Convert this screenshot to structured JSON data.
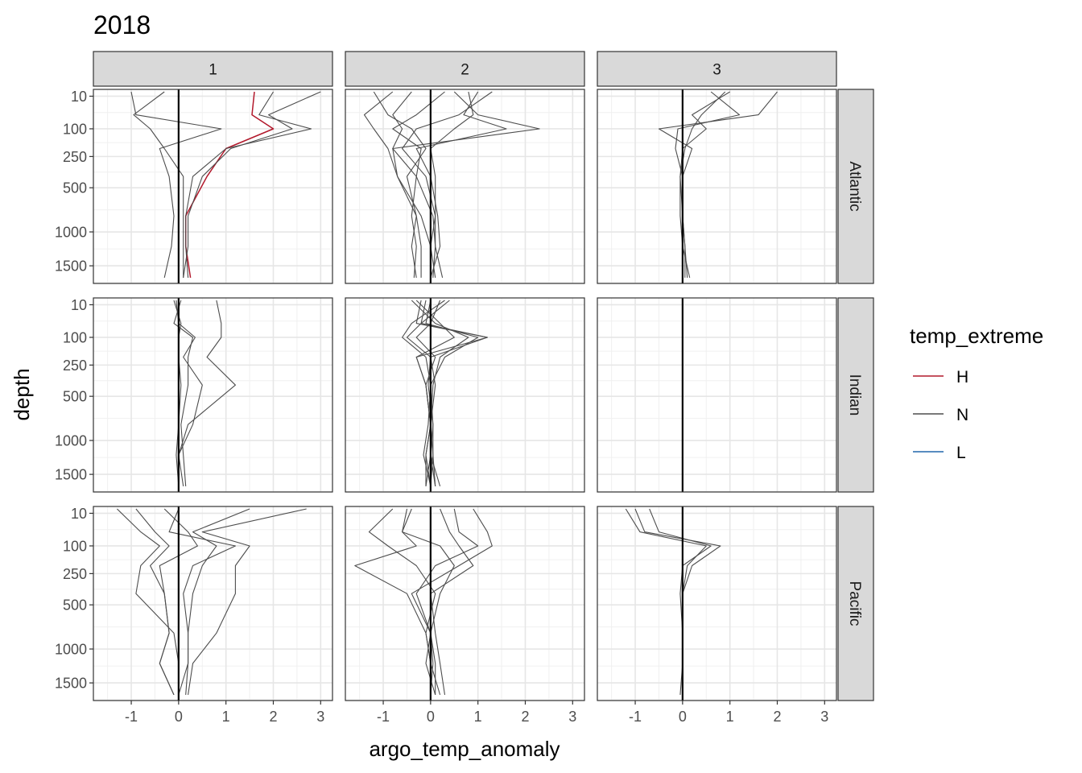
{
  "chart_data": {
    "type": "line",
    "title": "2018",
    "xlabel": "argo_temp_anomaly",
    "ylabel": "depth",
    "xlim": [
      -1.8,
      3.25
    ],
    "x_ticks": [
      -1,
      0,
      1,
      2,
      3
    ],
    "x_tick_labels": [
      "-1",
      "0",
      "1",
      "2",
      "3"
    ],
    "y_scale": "sqrt_reversed",
    "ylim": [
      0,
      1800
    ],
    "y_ticks": [
      10,
      100,
      250,
      500,
      1000,
      1500
    ],
    "y_tick_labels": [
      "10",
      "100",
      "250",
      "500",
      "1000",
      "1500"
    ],
    "grid": true,
    "reference_line_x": 0,
    "col_facets": [
      "1",
      "2",
      "3"
    ],
    "row_facets": [
      "Atlantic",
      "Indian",
      "Pacific"
    ],
    "legend": {
      "title": "temp_extreme",
      "placement": "right",
      "entries": [
        {
          "label": "H",
          "color": "#B2182B"
        },
        {
          "label": "N",
          "color": "#4D4D4D"
        },
        {
          "label": "L",
          "color": "#2166AC"
        }
      ]
    },
    "depths": [
      5,
      50,
      100,
      200,
      400,
      800,
      1200,
      1700
    ],
    "panels": [
      {
        "row": "Atlantic",
        "col": "1",
        "series": [
          {
            "temp_extreme": "H",
            "x": [
              1.6,
              1.55,
              2.0,
              1.0,
              0.6,
              0.15,
              0.15,
              0.25
            ]
          },
          {
            "temp_extreme": "N",
            "x": [
              -1.0,
              -0.9,
              0.9,
              -0.4,
              -0.2,
              -0.1,
              -0.15,
              -0.3
            ]
          },
          {
            "temp_extreme": "N",
            "x": [
              3.0,
              1.9,
              2.4,
              1.1,
              0.5,
              0.2,
              0.2,
              0.1
            ]
          },
          {
            "temp_extreme": "N",
            "x": [
              2.0,
              1.7,
              2.8,
              1.0,
              0.3,
              0.15,
              0.15,
              0.2
            ]
          },
          {
            "temp_extreme": "N",
            "x": [
              -0.3,
              -0.95,
              -0.6,
              -0.3,
              0.1,
              0.1,
              0.1,
              0.1
            ]
          }
        ]
      },
      {
        "row": "Atlantic",
        "col": "2",
        "series": [
          {
            "temp_extreme": "N",
            "x": [
              -0.8,
              -1.4,
              -1.2,
              -0.9,
              -0.7,
              -0.3,
              -0.4,
              -0.3
            ]
          },
          {
            "temp_extreme": "N",
            "x": [
              -0.4,
              -0.8,
              -0.6,
              -0.8,
              -0.3,
              -0.4,
              -0.3,
              -0.35
            ]
          },
          {
            "temp_extreme": "N",
            "x": [
              0.5,
              1.0,
              2.3,
              -0.8,
              -0.7,
              -0.2,
              0.0,
              0.0
            ]
          },
          {
            "temp_extreme": "N",
            "x": [
              1.0,
              0.7,
              1.6,
              -0.3,
              0.0,
              0.15,
              0.2,
              0.0
            ]
          },
          {
            "temp_extreme": "N",
            "x": [
              1.3,
              0.6,
              -0.3,
              -0.6,
              -0.1,
              0.1,
              0.1,
              0.25
            ]
          },
          {
            "temp_extreme": "N",
            "x": [
              0.3,
              -0.3,
              -0.8,
              -0.2,
              -0.3,
              0.05,
              0.1,
              0.05
            ]
          },
          {
            "temp_extreme": "N",
            "x": [
              -1.2,
              -0.9,
              -0.4,
              -0.1,
              -0.5,
              -0.3,
              -0.2,
              -0.2
            ]
          },
          {
            "temp_extreme": "N",
            "x": [
              0.8,
              0.9,
              0.5,
              0.0,
              0.1,
              0.1,
              0.0,
              0.1
            ]
          }
        ]
      },
      {
        "row": "Atlantic",
        "col": "3",
        "series": [
          {
            "temp_extreme": "N",
            "x": [
              2.0,
              1.6,
              -0.5,
              0.2,
              0.0,
              0.0,
              0.05,
              0.1
            ]
          },
          {
            "temp_extreme": "N",
            "x": [
              1.0,
              0.2,
              0.5,
              0.0,
              -0.05,
              0.0,
              0.05,
              0.05
            ]
          },
          {
            "temp_extreme": "N",
            "x": [
              0.6,
              1.2,
              -0.1,
              -0.15,
              0.0,
              0.0,
              0.0,
              0.15
            ]
          },
          {
            "temp_extreme": "N",
            "x": [
              0.9,
              0.4,
              0.2,
              0.05,
              -0.05,
              -0.05,
              0.0,
              0.0
            ]
          }
        ]
      },
      {
        "row": "Indian",
        "col": "1",
        "series": [
          {
            "temp_extreme": "N",
            "x": [
              0.8,
              0.9,
              0.9,
              0.6,
              1.2,
              0.2,
              0.0,
              0.0
            ]
          },
          {
            "temp_extreme": "N",
            "x": [
              -0.05,
              0.0,
              0.35,
              0.1,
              0.5,
              0.3,
              0.0,
              0.1
            ]
          },
          {
            "temp_extreme": "N",
            "x": [
              0.05,
              -0.1,
              0.3,
              0.2,
              0.2,
              0.05,
              0.1,
              0.15
            ]
          },
          {
            "temp_extreme": "N",
            "x": [
              -0.1,
              0.05,
              0.0,
              0.0,
              0.05,
              0.0,
              -0.05,
              0.0
            ]
          }
        ]
      },
      {
        "row": "Indian",
        "col": "2",
        "series": [
          {
            "temp_extreme": "N",
            "x": [
              -0.2,
              -0.3,
              1.2,
              -0.3,
              -0.1,
              0.0,
              -0.1,
              -0.1
            ]
          },
          {
            "temp_extreme": "N",
            "x": [
              0.0,
              -0.1,
              1.0,
              0.3,
              0.0,
              0.05,
              0.0,
              0.1
            ]
          },
          {
            "temp_extreme": "N",
            "x": [
              -0.3,
              0.2,
              0.5,
              -0.3,
              -0.1,
              0.0,
              0.0,
              0.2
            ]
          },
          {
            "temp_extreme": "N",
            "x": [
              -0.1,
              -0.2,
              -0.5,
              0.0,
              0.1,
              0.0,
              -0.1,
              0.0
            ]
          },
          {
            "temp_extreme": "N",
            "x": [
              0.3,
              -0.4,
              -0.6,
              -0.1,
              0.0,
              -0.05,
              -0.15,
              0.0
            ]
          },
          {
            "temp_extreme": "N",
            "x": [
              -0.4,
              0.1,
              0.8,
              0.2,
              0.05,
              0.0,
              0.0,
              -0.1
            ]
          },
          {
            "temp_extreme": "N",
            "x": [
              0.2,
              0.0,
              -0.3,
              0.1,
              -0.1,
              0.0,
              0.05,
              0.1
            ]
          },
          {
            "temp_extreme": "N",
            "x": [
              0.4,
              -0.2,
              1.2,
              0.0,
              -0.05,
              0.05,
              0.05,
              0.0
            ]
          }
        ]
      },
      {
        "row": "Indian",
        "col": "3",
        "series": []
      },
      {
        "row": "Pacific",
        "col": "1",
        "series": [
          {
            "temp_extreme": "N",
            "x": [
              -1.3,
              -0.8,
              -0.4,
              -0.8,
              -0.9,
              -0.1,
              0.0,
              0.0
            ]
          },
          {
            "temp_extreme": "N",
            "x": [
              -0.9,
              -0.5,
              -0.2,
              -0.6,
              -0.3,
              -0.2,
              -0.4,
              -0.1
            ]
          },
          {
            "temp_extreme": "N",
            "x": [
              1.5,
              0.3,
              0.8,
              0.5,
              0.3,
              0.2,
              0.2,
              0.0
            ]
          },
          {
            "temp_extreme": "N",
            "x": [
              2.7,
              0.5,
              1.5,
              1.2,
              1.2,
              0.8,
              0.3,
              0.2
            ]
          },
          {
            "temp_extreme": "N",
            "x": [
              0.0,
              -0.2,
              1.2,
              0.3,
              0.1,
              0.2,
              0.2,
              0.15
            ]
          },
          {
            "temp_extreme": "N",
            "x": [
              -0.3,
              0.2,
              0.4,
              -0.4,
              -0.3,
              -0.2,
              -0.4,
              -0.1
            ]
          }
        ]
      },
      {
        "row": "Pacific",
        "col": "2",
        "series": [
          {
            "temp_extreme": "N",
            "x": [
              -0.5,
              -0.6,
              -0.3,
              -1.6,
              -0.5,
              -0.1,
              0.0,
              0.0
            ]
          },
          {
            "temp_extreme": "N",
            "x": [
              0.2,
              0.4,
              0.6,
              0.9,
              0.0,
              0.1,
              0.2,
              0.3
            ]
          },
          {
            "temp_extreme": "N",
            "x": [
              0.9,
              1.2,
              1.3,
              0.6,
              -0.4,
              0.0,
              -0.1,
              0.1
            ]
          },
          {
            "temp_extreme": "N",
            "x": [
              -0.8,
              -1.3,
              -0.9,
              -0.3,
              0.1,
              -0.1,
              0.0,
              0.2
            ]
          },
          {
            "temp_extreme": "N",
            "x": [
              0.5,
              0.6,
              1.0,
              0.1,
              -0.3,
              0.0,
              0.05,
              0.0
            ]
          },
          {
            "temp_extreme": "N",
            "x": [
              -0.4,
              -0.6,
              0.2,
              0.5,
              0.2,
              0.0,
              0.1,
              0.1
            ]
          }
        ]
      },
      {
        "row": "Pacific",
        "col": "3",
        "series": [
          {
            "temp_extreme": "N",
            "x": [
              -1.0,
              -0.8,
              0.8,
              0.2,
              0.0,
              0.0,
              0.0,
              -0.05
            ]
          },
          {
            "temp_extreme": "N",
            "x": [
              -1.2,
              -0.9,
              0.5,
              0.1,
              0.0,
              0.0,
              0.0,
              0.0
            ]
          },
          {
            "temp_extreme": "N",
            "x": [
              -0.7,
              -0.5,
              0.6,
              0.0,
              -0.05,
              0.0,
              0.0,
              0.0
            ]
          }
        ]
      }
    ]
  }
}
